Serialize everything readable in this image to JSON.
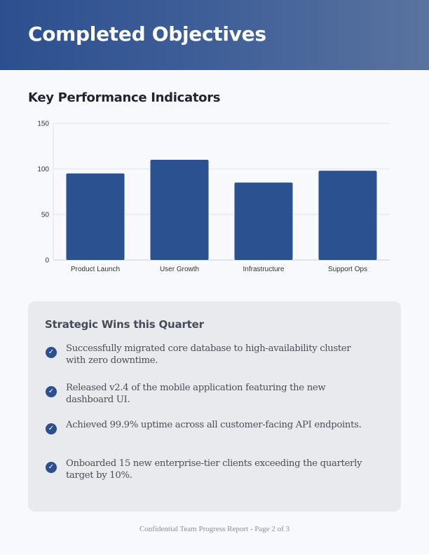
{
  "header": {
    "title": "Completed Objectives"
  },
  "kpi": {
    "title": "Key Performance Indicators"
  },
  "chart_data": {
    "type": "bar",
    "categories": [
      "Product Launch",
      "User Growth",
      "Infrastructure",
      "Support Ops"
    ],
    "values": [
      95,
      110,
      85,
      98
    ],
    "ylim": [
      0,
      150
    ],
    "yticks": [
      0,
      50,
      100,
      150
    ],
    "grid": true,
    "bar_color": "#2c5190",
    "xlabel": "",
    "ylabel": "",
    "title": ""
  },
  "wins": {
    "title": "Strategic Wins this Quarter",
    "items": [
      "Successfully migrated core database to high-availability cluster with zero downtime.",
      "Released v2.4 of the mobile application featuring the new dashboard UI.",
      "Achieved 99.9% uptime across all customer-facing API endpoints.",
      "Onboarded 15 new enterprise-tier clients exceeding the quarterly target by 10%."
    ],
    "icon": "check-circle-icon"
  },
  "footer": {
    "text": "Confidential Team Progress Report - Page 2 of 3"
  }
}
